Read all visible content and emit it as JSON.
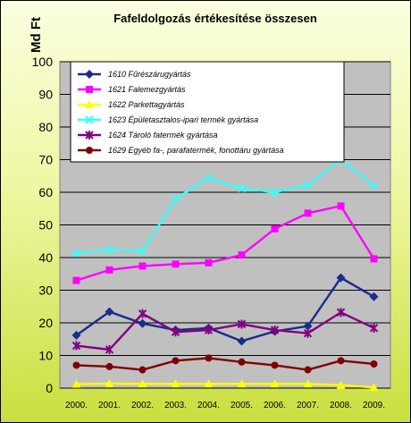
{
  "chart_data": {
    "type": "line",
    "title": "Fafeldolgozás értékesítése összesen",
    "ylabel": "Md Ft",
    "xlabel": "",
    "ylim": [
      0,
      100
    ],
    "ytick_step": 10,
    "grid": true,
    "legend_position": "top-left",
    "categories": [
      "2000.",
      "2001.",
      "2002.",
      "2003.",
      "2004.",
      "2005.",
      "2006.",
      "2007.",
      "2008.",
      "2009."
    ],
    "series": [
      {
        "name": "1610    Fűrészárugyártás",
        "color": "#1a2b8c",
        "marker": "diamond",
        "values": [
          16.2,
          23.4,
          19.8,
          17.8,
          18.4,
          14.4,
          17.4,
          19.0,
          33.8,
          28.0
        ]
      },
      {
        "name": "1621    Falemezgyártás",
        "color": "#ff00ff",
        "marker": "square",
        "values": [
          33.0,
          36.2,
          37.4,
          38.0,
          38.4,
          40.8,
          48.8,
          53.6,
          55.8,
          39.6
        ]
      },
      {
        "name": "1622    Parkettagyártás",
        "color": "#ffff00",
        "marker": "triangle",
        "values": [
          1.2,
          1.4,
          1.3,
          1.3,
          1.3,
          1.3,
          1.3,
          1.3,
          0.9,
          0.2
        ]
      },
      {
        "name": "1623    Épületasztalos-ipari termék gyártása",
        "color": "#33ffff",
        "marker": "x",
        "values": [
          41.4,
          42.4,
          42.0,
          58.0,
          64.4,
          61.2,
          60.0,
          62.2,
          70.0,
          62.0
        ]
      },
      {
        "name": "1624    Tároló fatermék gyártása",
        "color": "#800080",
        "marker": "star",
        "values": [
          13.0,
          11.8,
          22.8,
          17.2,
          17.8,
          19.6,
          17.8,
          16.8,
          23.2,
          18.4
        ]
      },
      {
        "name": "1629    Egyéb fa-, parafatermék, fonottáru gyártása",
        "color": "#800000",
        "marker": "circle",
        "values": [
          7.0,
          6.6,
          5.6,
          8.4,
          9.2,
          8.0,
          7.0,
          5.6,
          8.4,
          7.4
        ]
      }
    ]
  }
}
